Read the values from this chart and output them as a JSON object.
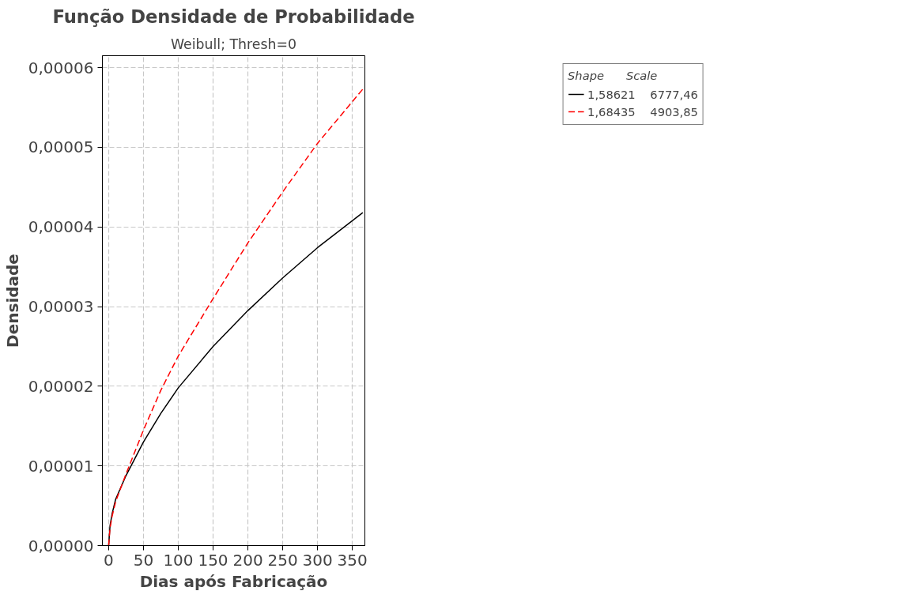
{
  "chart_data": {
    "type": "line",
    "title": "Função Densidade de Probabilidade",
    "subtitle": "Weibull; Thresh=0",
    "xlabel": "Dias após Fabricação",
    "ylabel": "Densidade",
    "legend_title": "Shape      Scale",
    "legend": "right",
    "grid": true,
    "xlim": [
      -9,
      368
    ],
    "xticks": [
      0,
      50,
      100,
      150,
      200,
      250,
      300,
      350
    ],
    "ylim": [
      0,
      6.15e-05
    ],
    "yticks": [
      {
        "value": 0,
        "label": "0,00000"
      },
      {
        "value": 1e-05,
        "label": "0,00001"
      },
      {
        "value": 2e-05,
        "label": "0,00002"
      },
      {
        "value": 3e-05,
        "label": "0,00003"
      },
      {
        "value": 4e-05,
        "label": "0,00004"
      },
      {
        "value": 5e-05,
        "label": "0,00005"
      },
      {
        "value": 6e-05,
        "label": "0,00006"
      }
    ],
    "x": [
      0,
      2,
      5,
      10,
      25,
      50,
      75,
      100,
      150,
      200,
      250,
      300,
      365
    ],
    "series": [
      {
        "name": "1,58621    6777,46",
        "color": "#000000",
        "line_style": "solid",
        "values": [
          0,
          2.5e-06,
          4e-06,
          5.8e-06,
          8.8e-06,
          1.3e-05,
          1.66e-05,
          1.98e-05,
          2.5e-05,
          2.95e-05,
          3.36e-05,
          3.74e-05,
          4.18e-05
        ]
      },
      {
        "name": "1,68435    4903,85",
        "color": "#ff0000",
        "line_style": "dashed",
        "values": [
          0,
          2.2e-06,
          3.7e-06,
          5.5e-06,
          9e-06,
          1.45e-05,
          1.95e-05,
          2.38e-05,
          3.1e-05,
          3.8e-05,
          4.44e-05,
          5.05e-05,
          5.73e-05
        ]
      }
    ]
  }
}
